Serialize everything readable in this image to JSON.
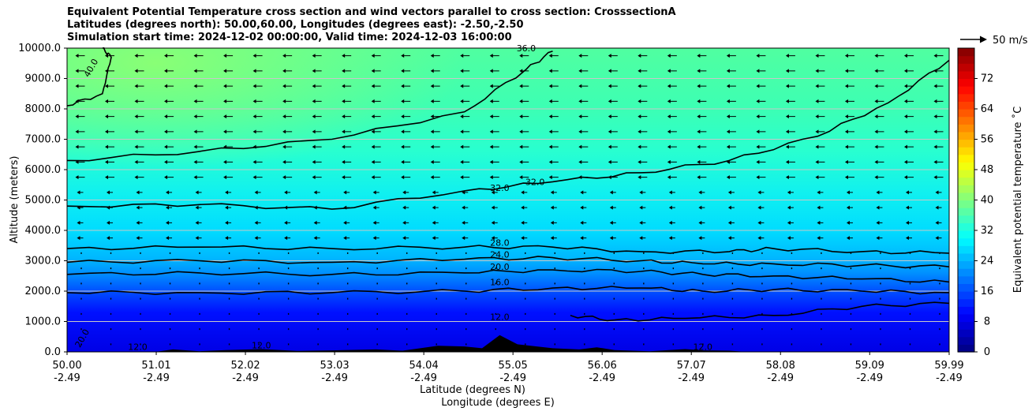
{
  "chart_data": {
    "type": "contour",
    "title_lines": [
      "Equivalent Potential Temperature cross section and wind vectors parallel to cross section: CrosssectionA",
      "Latitudes (degrees north): 50.00,60.00, Longitudes (degrees east): -2.50,-2.50",
      "Simulation start time: 2024-12-02 00:00:00, Valid time: 2024-12-03 16:00:00"
    ],
    "ylabel": "Altitude (meters)",
    "xlabel_line1": "Latitude (degrees N)",
    "xlabel_line2": "Longitude (degrees E)",
    "ylim": [
      0,
      10000
    ],
    "y_ticks": [
      "0.0",
      "1000.0",
      "2000.0",
      "3000.0",
      "4000.0",
      "5000.0",
      "6000.0",
      "7000.0",
      "8000.0",
      "9000.0",
      "10000.0"
    ],
    "y_tick_values": [
      0,
      1000,
      2000,
      3000,
      4000,
      5000,
      6000,
      7000,
      8000,
      9000,
      10000
    ],
    "xlim": [
      50.0,
      59.99
    ],
    "x_ticks_lat": [
      "50.00",
      "51.01",
      "52.02",
      "53.03",
      "54.04",
      "55.05",
      "56.06",
      "57.07",
      "58.08",
      "59.09",
      "59.99"
    ],
    "x_ticks_lon": [
      "-2.49",
      "-2.49",
      "-2.49",
      "-2.49",
      "-2.49",
      "-2.49",
      "-2.49",
      "-2.49",
      "-2.49",
      "-2.49",
      "-2.49"
    ],
    "x_tick_values": [
      50.0,
      51.01,
      52.02,
      53.03,
      54.04,
      55.05,
      56.06,
      57.07,
      58.08,
      59.09,
      59.99
    ],
    "colorbar": {
      "label": "Equivalent potential temperature ˚C",
      "min": 0,
      "max": 80,
      "ticks": [
        "0",
        "8",
        "16",
        "24",
        "32",
        "40",
        "48",
        "56",
        "64",
        "72"
      ],
      "tick_values": [
        0,
        8,
        16,
        24,
        32,
        40,
        48,
        56,
        64,
        72
      ]
    },
    "quiver_key": "50 m/s",
    "contours": [
      {
        "level": 12,
        "label": "12.0",
        "points": [
          [
            55.7,
            1200
          ],
          [
            56.2,
            1050
          ],
          [
            57.0,
            1100
          ],
          [
            58.0,
            1200
          ],
          [
            59.0,
            1500
          ],
          [
            59.99,
            1600
          ]
        ]
      },
      {
        "level": 16,
        "label": "16.0",
        "points": [
          [
            50.0,
            1950
          ],
          [
            51.5,
            1950
          ],
          [
            53.0,
            1950
          ],
          [
            54.5,
            2000
          ],
          [
            55.5,
            2100
          ],
          [
            56.5,
            2100
          ],
          [
            57.2,
            2000
          ],
          [
            58.0,
            2050
          ],
          [
            59.0,
            2000
          ],
          [
            59.99,
            1950
          ]
        ]
      },
      {
        "level": 20,
        "label": "20.0",
        "points": [
          [
            50.0,
            2550
          ],
          [
            51.5,
            2600
          ],
          [
            53.0,
            2550
          ],
          [
            54.5,
            2600
          ],
          [
            55.5,
            2700
          ],
          [
            56.5,
            2650
          ],
          [
            57.2,
            2550
          ],
          [
            58.0,
            2500
          ],
          [
            59.0,
            2400
          ],
          [
            59.99,
            2300
          ]
        ]
      },
      {
        "level": 24,
        "label": "24.0",
        "points": [
          [
            50.0,
            2950
          ],
          [
            51.5,
            3000
          ],
          [
            53.0,
            2950
          ],
          [
            54.5,
            3050
          ],
          [
            55.5,
            3100
          ],
          [
            56.5,
            3000
          ],
          [
            57.2,
            2900
          ],
          [
            58.0,
            2900
          ],
          [
            59.0,
            2850
          ],
          [
            59.99,
            2800
          ]
        ]
      },
      {
        "level": 28,
        "label": "28.0",
        "points": [
          [
            50.0,
            3400
          ],
          [
            51.5,
            3450
          ],
          [
            53.0,
            3400
          ],
          [
            54.5,
            3450
          ],
          [
            55.5,
            3450
          ],
          [
            56.5,
            3300
          ],
          [
            57.5,
            3300
          ],
          [
            58.0,
            3400
          ],
          [
            59.0,
            3300
          ],
          [
            59.99,
            3250
          ]
        ]
      },
      {
        "level": 32,
        "label": "32.0",
        "points": [
          [
            50.0,
            4800
          ],
          [
            51.5,
            4850
          ],
          [
            53.0,
            4700
          ],
          [
            54.5,
            5300
          ],
          [
            55.5,
            5600
          ],
          [
            56.5,
            5900
          ],
          [
            57.5,
            6300
          ],
          [
            58.5,
            7100
          ],
          [
            59.3,
            8200
          ],
          [
            59.99,
            9600
          ]
        ]
      },
      {
        "level": 36,
        "label": "36.0",
        "points": [
          [
            50.0,
            6300
          ],
          [
            51.5,
            6600
          ],
          [
            53.0,
            7000
          ],
          [
            54.5,
            7900
          ],
          [
            55.2,
            9300
          ],
          [
            55.5,
            9900
          ]
        ]
      },
      {
        "level": 40,
        "label": "40.0",
        "points": [
          [
            50.0,
            8100
          ],
          [
            50.4,
            8500
          ],
          [
            50.5,
            9700
          ],
          [
            50.4,
            10000
          ]
        ]
      }
    ],
    "contour_labels_shown": [
      "40.0",
      "36.0",
      "32.0",
      "32.0",
      "28.0",
      "24.0",
      "20.0",
      "16.0",
      "12.0",
      "12.0",
      "12.0",
      "12.0",
      "20.0"
    ],
    "terrain_peak_m": 550
  }
}
